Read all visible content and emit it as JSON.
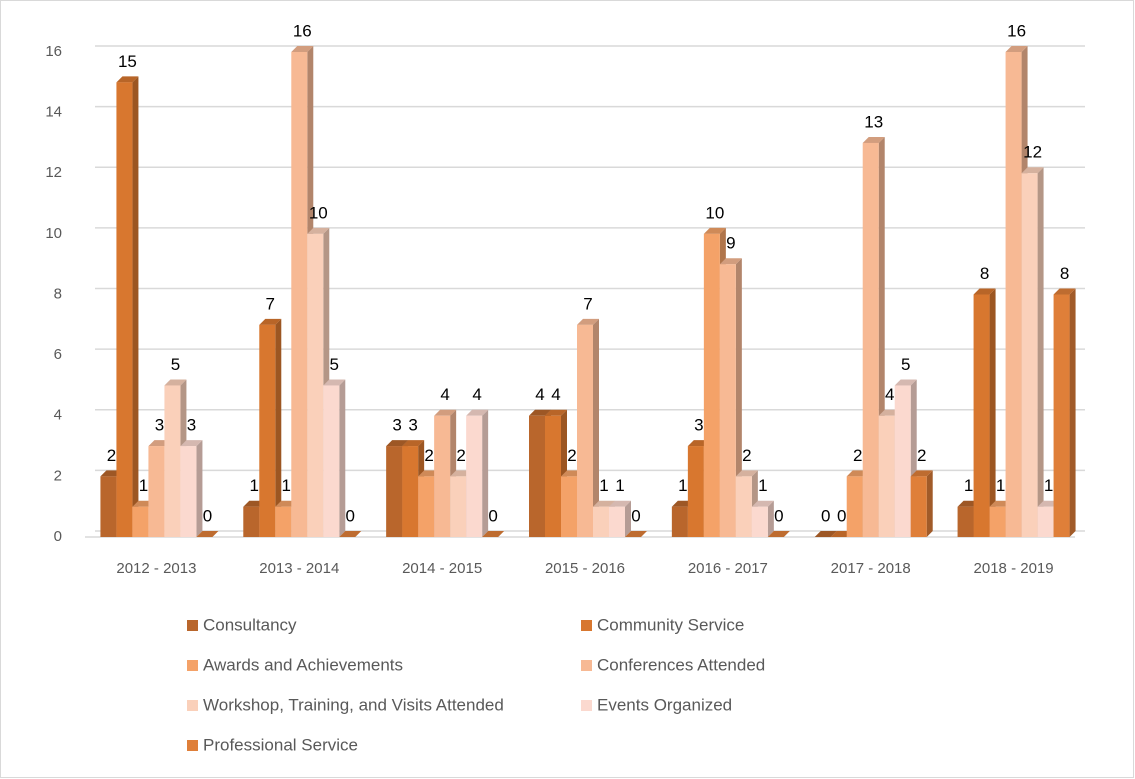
{
  "chart_data": {
    "type": "bar3d",
    "categories": [
      "2012 - 2013",
      "2013 - 2014",
      "2014 - 2015",
      "2015 - 2016",
      "2016 - 2017",
      "2017 - 2018",
      "2018 - 2019"
    ],
    "series": [
      {
        "name": "Consultancy",
        "color": "#b9662c",
        "values": [
          2,
          1,
          3,
          4,
          1,
          0,
          1
        ]
      },
      {
        "name": "Community Service",
        "color": "#d8772f",
        "values": [
          15,
          7,
          3,
          4,
          3,
          0,
          8
        ]
      },
      {
        "name": "Awards and Achievements",
        "color": "#f4a268",
        "values": [
          1,
          1,
          2,
          2,
          10,
          2,
          1
        ]
      },
      {
        "name": "Conferences Attended",
        "color": "#f7b994",
        "values": [
          3,
          16,
          4,
          7,
          9,
          13,
          16
        ]
      },
      {
        "name": "Workshop, Training, and Visits Attended",
        "color": "#fad0ba",
        "values": [
          5,
          10,
          2,
          1,
          2,
          4,
          12
        ]
      },
      {
        "name": "Events Organized",
        "color": "#fbd9cf",
        "values": [
          3,
          5,
          4,
          1,
          1,
          5,
          1
        ]
      },
      {
        "name": "Professional Service",
        "color": "#df7f39",
        "values": [
          0,
          0,
          0,
          0,
          0,
          2,
          8
        ]
      }
    ],
    "ylim": [
      0,
      16
    ],
    "yticks": [
      0,
      2,
      4,
      6,
      8,
      10,
      12,
      14,
      16
    ],
    "grid": true,
    "legend": "bottom"
  }
}
